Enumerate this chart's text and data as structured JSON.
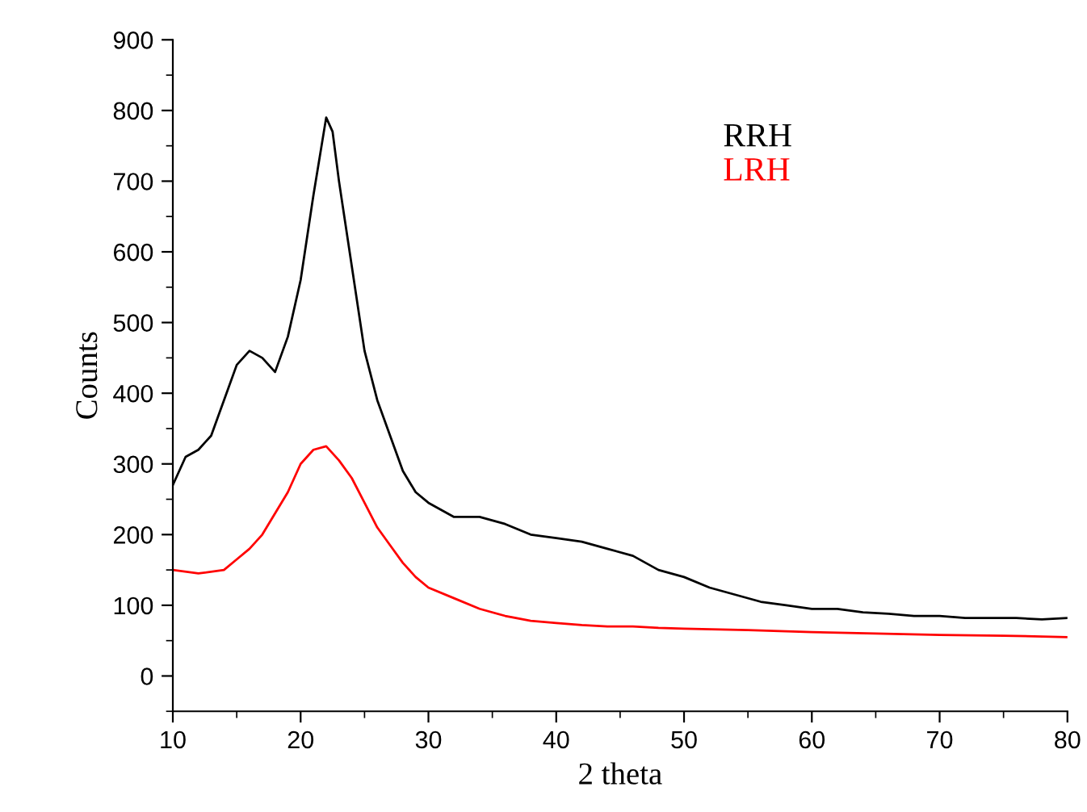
{
  "chart_data": {
    "type": "line",
    "xlabel": "2 theta",
    "ylabel": "Counts",
    "xlim": [
      10,
      80
    ],
    "xticks": [
      10,
      20,
      30,
      40,
      50,
      60,
      70,
      80
    ],
    "ylim": [
      -50,
      900
    ],
    "yticks": [
      0,
      100,
      200,
      300,
      400,
      500,
      600,
      700,
      800,
      900
    ],
    "grid": false,
    "legend": "top right",
    "marker": "none",
    "line_style": "solid",
    "series": [
      {
        "name": "RRH",
        "color": "#000000",
        "x": [
          10,
          11,
          12,
          13,
          14,
          15,
          16,
          17,
          18,
          19,
          20,
          21,
          22,
          22.5,
          23,
          24,
          25,
          26,
          27,
          28,
          29,
          30,
          32,
          34,
          36,
          38,
          40,
          42,
          44,
          46,
          48,
          50,
          52,
          54,
          56,
          58,
          60,
          62,
          64,
          66,
          68,
          70,
          72,
          74,
          76,
          78,
          80
        ],
        "values": [
          270,
          310,
          320,
          340,
          390,
          440,
          460,
          450,
          430,
          480,
          560,
          680,
          790,
          770,
          700,
          580,
          460,
          390,
          340,
          290,
          260,
          245,
          225,
          225,
          215,
          200,
          195,
          190,
          180,
          170,
          150,
          140,
          125,
          115,
          105,
          100,
          95,
          95,
          90,
          88,
          85,
          85,
          82,
          82,
          82,
          80,
          82
        ]
      },
      {
        "name": "LRH",
        "color": "#ff0000",
        "x": [
          10,
          12,
          14,
          15,
          16,
          17,
          18,
          19,
          20,
          21,
          22,
          23,
          24,
          25,
          26,
          27,
          28,
          29,
          30,
          32,
          34,
          36,
          38,
          40,
          42,
          44,
          46,
          48,
          50,
          55,
          60,
          65,
          70,
          75,
          80
        ],
        "values": [
          150,
          145,
          150,
          165,
          180,
          200,
          230,
          260,
          300,
          320,
          325,
          305,
          280,
          245,
          210,
          185,
          160,
          140,
          125,
          110,
          95,
          85,
          78,
          75,
          72,
          70,
          70,
          68,
          67,
          65,
          62,
          60,
          58,
          57,
          55
        ]
      }
    ]
  }
}
